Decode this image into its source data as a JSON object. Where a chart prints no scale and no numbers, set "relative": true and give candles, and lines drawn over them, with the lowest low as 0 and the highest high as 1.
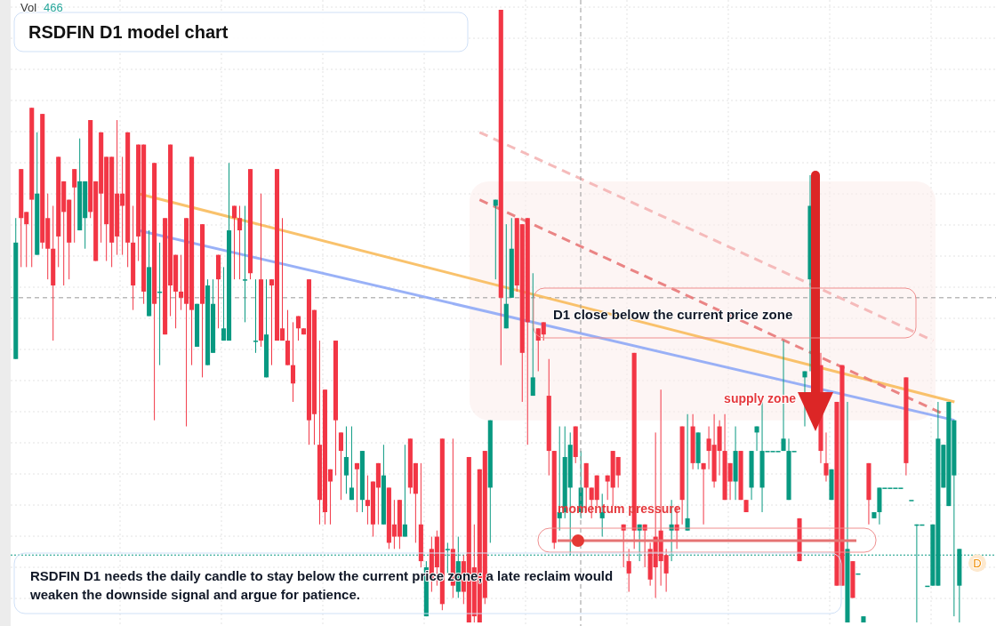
{
  "chart_data": {
    "type": "candlestick",
    "title": "RSDFIN D1 model chart",
    "relative": true,
    "categories": [
      null,
      null,
      null,
      null,
      null,
      null,
      null,
      null,
      null,
      null,
      null,
      null,
      null,
      null,
      null,
      null,
      null,
      null,
      null,
      null,
      null,
      null,
      null,
      null,
      null,
      null,
      null,
      null,
      null,
      null,
      null,
      null,
      null,
      null,
      null,
      null,
      null,
      null,
      null,
      null,
      null,
      null,
      null,
      null,
      null,
      null,
      null,
      null,
      null,
      null,
      null,
      null,
      null,
      null,
      null,
      null,
      null,
      null,
      null,
      null,
      null,
      null,
      null,
      null,
      null,
      null,
      null,
      null,
      null,
      null,
      null,
      null,
      null,
      null,
      null,
      null,
      null,
      null,
      null,
      null,
      null,
      null,
      null,
      null,
      null,
      null,
      null,
      null,
      null,
      null,
      null,
      null,
      null,
      null,
      null,
      null,
      null,
      null,
      null,
      null,
      null,
      null,
      null,
      null,
      null,
      null,
      null,
      null,
      null,
      null,
      null,
      null,
      null,
      null,
      null,
      null,
      null,
      null,
      null,
      null,
      null,
      null,
      null,
      null,
      null,
      null,
      null,
      null,
      null,
      null,
      null,
      null,
      null,
      null,
      null,
      null,
      null,
      null,
      null,
      null,
      null,
      null,
      null,
      null,
      null,
      null,
      null,
      null,
      null,
      null,
      null,
      null,
      null,
      null,
      null,
      null,
      null,
      null,
      null,
      null,
      null,
      null,
      null,
      null,
      null,
      null,
      null,
      null,
      null,
      null,
      null,
      null,
      null,
      null,
      null,
      null,
      null,
      null
    ],
    "ohlc": [
      [
        0.43,
        0.66,
        0.43,
        0.62
      ],
      [
        0.74,
        0.74,
        0.58,
        0.66
      ],
      [
        0.67,
        0.67,
        0.58,
        0.65
      ],
      [
        0.84,
        0.84,
        0.58,
        0.69
      ],
      [
        0.6,
        0.8,
        0.6,
        0.7
      ],
      [
        0.83,
        0.83,
        0.61,
        0.62
      ],
      [
        0.66,
        0.7,
        0.56,
        0.61
      ],
      [
        0.61,
        0.68,
        0.46,
        0.55
      ],
      [
        0.76,
        0.76,
        0.58,
        0.63
      ],
      [
        0.72,
        0.72,
        0.55,
        0.67
      ],
      [
        0.69,
        0.69,
        0.56,
        0.62
      ],
      [
        0.74,
        0.74,
        0.62,
        0.71
      ],
      [
        0.64,
        0.79,
        0.64,
        0.72
      ],
      [
        0.66,
        0.72,
        0.61,
        0.72
      ],
      [
        0.82,
        0.82,
        0.66,
        0.67
      ],
      [
        0.72,
        0.72,
        0.59,
        0.59
      ],
      [
        0.8,
        0.8,
        0.62,
        0.7
      ],
      [
        0.76,
        0.76,
        0.59,
        0.65
      ],
      [
        0.76,
        0.76,
        0.58,
        0.62
      ],
      [
        0.7,
        0.82,
        0.6,
        0.63
      ],
      [
        0.7,
        0.76,
        0.6,
        0.68
      ],
      [
        0.8,
        0.8,
        0.58,
        0.62
      ],
      [
        0.62,
        0.68,
        0.51,
        0.55
      ],
      [
        0.78,
        0.78,
        0.59,
        0.63
      ],
      [
        0.78,
        0.78,
        0.52,
        0.54
      ],
      [
        0.5,
        0.64,
        0.5,
        0.58
      ],
      [
        0.75,
        0.75,
        0.33,
        0.52
      ],
      [
        0.54,
        0.62,
        0.42,
        0.54
      ],
      [
        0.66,
        0.66,
        0.47,
        0.47
      ],
      [
        0.78,
        0.78,
        0.5,
        0.55
      ],
      [
        0.6,
        0.6,
        0.48,
        0.54
      ],
      [
        0.54,
        0.6,
        0.51,
        0.53
      ],
      [
        0.66,
        0.66,
        0.32,
        0.52
      ],
      [
        0.76,
        0.76,
        0.42,
        0.51
      ],
      [
        0.45,
        0.52,
        0.45,
        0.52
      ],
      [
        0.65,
        0.65,
        0.4,
        0.52
      ],
      [
        0.42,
        0.56,
        0.42,
        0.55
      ],
      [
        0.44,
        0.56,
        0.44,
        0.52
      ],
      [
        0.6,
        0.6,
        0.48,
        0.56
      ],
      [
        0.46,
        0.58,
        0.46,
        0.48
      ],
      [
        0.46,
        0.75,
        0.46,
        0.64
      ],
      [
        0.68,
        0.68,
        0.56,
        0.66
      ],
      [
        0.66,
        0.68,
        0.56,
        0.64
      ],
      [
        0.56,
        0.68,
        0.49,
        0.56
      ],
      [
        0.74,
        0.74,
        0.56,
        0.57
      ],
      [
        0.46,
        0.56,
        0.44,
        0.46
      ],
      [
        0.56,
        0.7,
        0.45,
        0.46
      ],
      [
        0.4,
        0.56,
        0.4,
        0.47
      ],
      [
        0.56,
        0.56,
        0.42,
        0.55
      ],
      [
        0.74,
        0.74,
        0.46,
        0.46
      ],
      [
        0.48,
        0.66,
        0.46,
        0.46
      ],
      [
        0.46,
        0.51,
        0.42,
        0.42
      ],
      [
        0.42,
        0.49,
        0.36,
        0.39
      ],
      [
        0.5,
        0.5,
        0.46,
        0.48
      ],
      [
        0.48,
        0.48,
        0.47,
        0.47
      ],
      [
        0.56,
        0.56,
        0.29,
        0.33
      ],
      [
        0.51,
        0.51,
        0.29,
        0.34
      ],
      [
        0.29,
        0.46,
        0.16,
        0.2
      ],
      [
        0.38,
        0.38,
        0.16,
        0.18
      ],
      [
        0.25,
        0.25,
        0.16,
        0.23
      ],
      [
        0.46,
        0.46,
        0.24,
        0.33
      ],
      [
        0.31,
        0.31,
        0.2,
        0.28
      ],
      [
        0.24,
        0.32,
        0.21,
        0.27
      ],
      [
        0.2,
        0.32,
        0.2,
        0.22
      ],
      [
        0.26,
        0.26,
        0.18,
        0.25
      ],
      [
        0.2,
        0.28,
        0.18,
        0.28
      ],
      [
        0.2,
        0.24,
        0.16,
        0.19
      ],
      [
        0.23,
        0.23,
        0.14,
        0.16
      ],
      [
        0.26,
        0.26,
        0.16,
        0.22
      ],
      [
        0.16,
        0.29,
        0.16,
        0.24
      ],
      [
        0.22,
        0.22,
        0.12,
        0.13
      ],
      [
        0.16,
        0.2,
        0.12,
        0.14
      ],
      [
        0.2,
        0.2,
        0.12,
        0.14
      ],
      [
        0.14,
        0.29,
        0.14,
        0.16
      ],
      [
        0.3,
        0.3,
        0.21,
        0.22
      ],
      [
        0.26,
        0.26,
        0.13,
        0.21
      ],
      [
        0.16,
        0.26,
        0.09,
        0.1
      ],
      [
        0.01,
        0.1,
        0.01,
        0.09
      ],
      [
        0.12,
        0.14,
        0.05,
        0.07
      ],
      [
        0.14,
        0.15,
        0.06,
        0.09
      ],
      [
        0.3,
        0.3,
        0.02,
        0.03
      ],
      [
        0.12,
        0.13,
        0.08,
        0.12
      ],
      [
        0.12,
        0.3,
        0.04,
        0.06
      ],
      [
        0.05,
        0.14,
        0.04,
        0.1
      ],
      [
        0.1,
        0.11,
        0.03,
        0.05
      ],
      [
        0.27,
        0.27,
        0.0,
        0.0
      ],
      [
        0.09,
        0.16,
        0.0,
        0.01
      ],
      [
        0.25,
        0.25,
        0.0,
        0.0
      ],
      [
        0.28,
        0.28,
        0.03,
        0.04
      ],
      [
        0.22,
        0.33,
        0.13,
        0.33
      ],
      [
        0.68,
        0.69,
        0.56,
        0.69
      ],
      [
        1.0,
        1.0,
        0.42,
        0.53
      ],
      [
        0.48,
        0.65,
        0.48,
        0.52
      ],
      [
        0.53,
        0.66,
        0.53,
        0.61
      ],
      [
        0.66,
        0.66,
        0.54,
        0.55
      ],
      [
        0.65,
        0.65,
        0.36,
        0.44
      ],
      [
        0.66,
        0.66,
        0.29,
        0.49
      ],
      [
        0.37,
        0.57,
        0.37,
        0.4
      ],
      [
        0.48,
        0.48,
        0.41,
        0.46
      ],
      [
        0.49,
        0.49,
        0.46,
        0.47
      ],
      [
        0.37,
        0.43,
        0.24,
        0.28
      ],
      [
        0.28,
        0.28,
        0.12,
        0.13
      ],
      [
        0.17,
        0.32,
        0.15,
        0.18
      ],
      [
        0.18,
        0.32,
        0.17,
        0.27
      ],
      [
        0.22,
        0.31,
        0.11,
        0.29
      ],
      [
        0.32,
        0.32,
        0.26,
        0.27
      ],
      [
        0.18,
        0.28,
        0.17,
        0.22
      ],
      [
        0.26,
        0.26,
        0.18,
        0.22
      ],
      [
        0.22,
        0.22,
        0.17,
        0.2
      ],
      [
        0.24,
        0.24,
        0.19,
        0.2
      ],
      [
        0.17,
        0.21,
        0.14,
        0.18
      ],
      [
        0.24,
        0.24,
        0.2,
        0.23
      ],
      [
        0.28,
        0.28,
        0.19,
        0.22
      ],
      [
        0.27,
        0.27,
        0.22,
        0.24
      ],
      [
        0.16,
        0.16,
        0.09,
        0.15
      ],
      [
        0.1,
        0.12,
        0.05,
        0.08
      ],
      [
        0.44,
        0.44,
        0.12,
        0.15
      ],
      [
        0.15,
        0.16,
        0.1,
        0.16
      ],
      [
        0.16,
        0.16,
        0.09,
        0.15
      ],
      [
        0.12,
        0.13,
        0.06,
        0.07
      ],
      [
        0.14,
        0.31,
        0.04,
        0.09
      ],
      [
        0.15,
        0.38,
        0.06,
        0.1
      ],
      [
        0.11,
        0.12,
        0.05,
        0.08
      ],
      [
        0.15,
        0.2,
        0.1,
        0.16
      ],
      [
        0.16,
        0.19,
        0.12,
        0.15
      ],
      [
        0.32,
        0.32,
        0.16,
        0.2
      ],
      [
        0.15,
        0.34,
        0.15,
        0.17
      ],
      [
        0.32,
        0.34,
        0.25,
        0.26
      ],
      [
        0.26,
        0.31,
        0.25,
        0.31
      ],
      [
        0.26,
        0.26,
        0.16,
        0.25
      ],
      [
        0.3,
        0.32,
        0.25,
        0.28
      ],
      [
        0.29,
        0.34,
        0.22,
        0.23
      ],
      [
        0.32,
        0.33,
        0.24,
        0.28
      ],
      [
        0.28,
        0.34,
        0.2,
        0.2
      ],
      [
        0.26,
        0.26,
        0.2,
        0.23
      ],
      [
        0.23,
        0.32,
        0.2,
        0.28
      ],
      [
        0.28,
        0.28,
        0.2,
        0.2
      ],
      [
        0.2,
        0.2,
        0.18,
        0.18
      ],
      [
        0.22,
        0.28,
        0.2,
        0.28
      ],
      [
        0.31,
        0.32,
        0.28,
        0.32
      ],
      [
        0.22,
        0.36,
        0.18,
        0.28
      ],
      [
        0.28,
        0.28,
        0.28,
        0.28
      ],
      [
        0.28,
        0.28,
        0.28,
        0.28
      ],
      [
        0.28,
        0.28,
        0.28,
        0.28
      ],
      [
        0.28,
        0.46,
        0.28,
        0.3
      ],
      [
        0.2,
        0.3,
        0.2,
        0.28
      ],
      [
        0.28,
        0.28,
        0.28,
        0.28
      ],
      [
        0.17,
        0.17,
        0.1,
        0.1
      ],
      [
        0.4,
        0.41,
        0.32,
        0.41
      ],
      [
        0.56,
        0.73,
        0.41,
        0.68
      ],
      null,
      [
        0.42,
        0.44,
        0.26,
        0.28
      ],
      [
        0.26,
        0.31,
        0.23,
        0.24
      ],
      [
        0.2,
        0.25,
        0.2,
        0.25
      ],
      [
        0.36,
        0.36,
        0.06,
        0.06
      ],
      [
        0.42,
        0.42,
        0.06,
        0.06
      ],
      [
        0.0,
        0.36,
        0.0,
        0.12
      ],
      [
        0.1,
        0.1,
        0.04,
        0.04
      ],
      [
        0.08,
        0.08,
        0.08,
        0.08
      ],
      [
        0.0,
        0.01,
        0.0,
        0.01
      ],
      [
        0.26,
        0.26,
        0.16,
        0.2
      ],
      [
        0.17,
        0.18,
        0.17,
        0.18
      ],
      [
        0.18,
        0.22,
        0.16,
        0.22
      ],
      [
        0.22,
        0.22,
        0.22,
        0.22
      ],
      [
        0.22,
        0.22,
        0.22,
        0.22
      ],
      [
        0.22,
        0.22,
        0.22,
        0.22
      ],
      [
        0.22,
        0.22,
        0.22,
        0.22
      ],
      [
        0.4,
        0.4,
        0.24,
        0.26
      ],
      [
        0.2,
        0.2,
        0.2,
        0.2
      ],
      [
        0.16,
        0.16,
        0.0,
        0.16
      ],
      [
        0.16,
        0.16,
        0.16,
        0.16
      ],
      [
        0.06,
        0.06,
        0.06,
        0.06
      ],
      [
        0.06,
        0.16,
        0.06,
        0.16
      ],
      [
        0.06,
        0.36,
        0.06,
        0.3
      ],
      [
        0.22,
        0.29,
        0.22,
        0.29
      ],
      [
        0.19,
        0.36,
        0.19,
        0.36
      ],
      [
        0.24,
        0.33,
        0.01,
        0.33
      ],
      [
        0.06,
        0.12,
        0.0,
        0.12
      ]
    ],
    "series": [
      {
        "type": "line",
        "color": "#f8bb5c",
        "values": [
          null,
          null,
          null,
          null,
          null,
          null,
          null,
          null,
          null,
          null,
          null,
          null,
          null,
          null,
          null,
          null,
          null,
          null,
          null,
          null,
          null,
          null,
          null,
          0.7,
          null,
          null,
          null,
          null,
          null,
          null,
          null,
          null,
          null,
          null,
          null,
          null,
          null,
          null,
          null,
          null,
          null,
          null,
          null,
          null,
          null,
          null,
          null,
          null,
          null,
          null,
          null,
          null,
          null,
          null,
          null,
          null,
          null,
          null,
          null,
          null,
          null,
          null,
          null,
          null,
          null,
          null,
          null,
          null,
          null,
          null,
          null,
          null,
          null,
          null,
          null,
          null,
          null,
          null,
          null,
          null,
          null,
          null,
          null,
          null,
          null,
          null,
          null,
          null,
          null,
          null,
          null,
          null,
          null,
          null,
          null,
          null,
          null,
          null,
          null,
          null,
          null,
          null,
          null,
          null,
          null,
          null,
          null,
          null,
          null,
          null,
          null,
          null,
          null,
          null,
          null,
          null,
          null,
          null,
          null,
          null,
          null,
          null,
          null,
          null,
          null,
          null,
          null,
          null,
          null,
          null,
          null,
          null,
          null,
          null,
          null,
          null,
          null,
          null,
          null,
          null,
          null,
          null,
          null,
          null,
          null,
          null,
          null,
          null,
          null,
          null,
          null,
          null,
          null,
          null,
          null,
          null,
          null,
          null,
          null,
          null,
          null,
          null,
          null,
          null,
          null,
          null,
          null,
          null,
          null,
          null,
          null,
          null,
          null,
          null,
          null,
          null,
          0.36,
          null
        ]
      },
      {
        "type": "line",
        "color": "#8ea8f6",
        "values": [
          null,
          null,
          null,
          null,
          null,
          null,
          null,
          null,
          null,
          null,
          null,
          null,
          null,
          null,
          null,
          null,
          null,
          null,
          null,
          null,
          null,
          null,
          null,
          0.64,
          null,
          null,
          null,
          null,
          null,
          null,
          null,
          null,
          null,
          null,
          null,
          null,
          null,
          null,
          null,
          null,
          null,
          null,
          null,
          null,
          null,
          null,
          null,
          null,
          null,
          null,
          null,
          null,
          null,
          null,
          null,
          null,
          null,
          null,
          null,
          null,
          null,
          null,
          null,
          null,
          null,
          null,
          null,
          null,
          null,
          null,
          null,
          null,
          null,
          null,
          null,
          null,
          null,
          null,
          null,
          null,
          null,
          null,
          null,
          null,
          null,
          null,
          null,
          null,
          null,
          null,
          null,
          null,
          null,
          null,
          null,
          null,
          null,
          null,
          null,
          null,
          null,
          null,
          null,
          null,
          null,
          null,
          null,
          null,
          null,
          null,
          null,
          null,
          null,
          null,
          null,
          null,
          null,
          null,
          null,
          null,
          null,
          null,
          null,
          null,
          null,
          null,
          null,
          null,
          null,
          null,
          null,
          null,
          null,
          null,
          null,
          null,
          null,
          null,
          null,
          null,
          null,
          null,
          null,
          null,
          null,
          null,
          null,
          null,
          null,
          null,
          null,
          null,
          null,
          null,
          null,
          null,
          null,
          null,
          null,
          null,
          null,
          null,
          null,
          null,
          null,
          null,
          null,
          null,
          null,
          null,
          null,
          null,
          null,
          null,
          null,
          null,
          0.33,
          null
        ]
      },
      {
        "type": "line",
        "color": "#e87878",
        "line_style": "dashed",
        "values": [
          null,
          null,
          null,
          null,
          null,
          null,
          null,
          null,
          null,
          null,
          null,
          null,
          null,
          null,
          null,
          null,
          null,
          null,
          null,
          null,
          null,
          null,
          null,
          null,
          null,
          null,
          null,
          null,
          null,
          null,
          null,
          null,
          null,
          null,
          null,
          null,
          null,
          null,
          null,
          null,
          null,
          null,
          null,
          null,
          null,
          null,
          null,
          null,
          null,
          null,
          null,
          null,
          null,
          null,
          null,
          null,
          null,
          null,
          null,
          null,
          null,
          null,
          null,
          null,
          null,
          null,
          null,
          null,
          null,
          null,
          null,
          null,
          null,
          null,
          null,
          null,
          null,
          null,
          null,
          null,
          null,
          null,
          null,
          null,
          null,
          null,
          null,
          0.69,
          null,
          null,
          null,
          null,
          null,
          null,
          null,
          null,
          null,
          null,
          null,
          null,
          null,
          null,
          null,
          null,
          null,
          null,
          null,
          null,
          null,
          null,
          null,
          null,
          null,
          null,
          null,
          null,
          null,
          null,
          null,
          null,
          null,
          null,
          null,
          null,
          null,
          null,
          null,
          null,
          null,
          null,
          null,
          null,
          null,
          null,
          null,
          null,
          null,
          null,
          null,
          null,
          null,
          null,
          null,
          null,
          null,
          null,
          null,
          null,
          null,
          null,
          null,
          null,
          null,
          null,
          null,
          null,
          null,
          null,
          null,
          null,
          null,
          null,
          null,
          null,
          null,
          null,
          null,
          null,
          null,
          null,
          null,
          null,
          null,
          null,
          0.34,
          null,
          null,
          null
        ]
      },
      {
        "type": "line",
        "color": "#f4b4b4",
        "line_style": "dashed",
        "values": [
          null,
          null,
          null,
          null,
          null,
          null,
          null,
          null,
          null,
          null,
          null,
          null,
          null,
          null,
          null,
          null,
          null,
          null,
          null,
          null,
          null,
          null,
          null,
          null,
          null,
          null,
          null,
          null,
          null,
          null,
          null,
          null,
          null,
          null,
          null,
          null,
          null,
          null,
          null,
          null,
          null,
          null,
          null,
          null,
          null,
          null,
          null,
          null,
          null,
          null,
          null,
          null,
          null,
          null,
          null,
          null,
          null,
          null,
          null,
          null,
          null,
          null,
          null,
          null,
          null,
          null,
          null,
          null,
          null,
          null,
          null,
          null,
          null,
          null,
          null,
          null,
          null,
          null,
          null,
          null,
          null,
          null,
          null,
          null,
          null,
          null,
          null,
          0.8,
          null,
          null,
          null,
          null,
          null,
          null,
          null,
          null,
          null,
          null,
          null,
          null,
          null,
          null,
          null,
          null,
          null,
          null,
          null,
          null,
          null,
          null,
          null,
          null,
          null,
          null,
          null,
          null,
          null,
          null,
          null,
          null,
          null,
          null,
          null,
          null,
          null,
          null,
          null,
          null,
          null,
          null,
          null,
          null,
          null,
          null,
          null,
          null,
          null,
          null,
          null,
          null,
          null,
          null,
          null,
          null,
          null,
          null,
          null,
          null,
          null,
          null,
          null,
          null,
          null,
          null,
          null,
          null,
          null,
          null,
          null,
          null,
          null,
          null,
          null,
          null,
          null,
          null,
          null,
          null,
          null,
          null,
          null,
          null,
          0.46,
          null,
          null,
          null,
          null,
          null
        ]
      }
    ],
    "ref_lines": [
      {
        "axis": "y",
        "value": 0.53,
        "color": "#999999",
        "line_style": "dashed"
      },
      {
        "axis": "y",
        "value": 0.11,
        "label": "D",
        "color": "#089981",
        "line_style": "dotted"
      }
    ],
    "bands": [
      {
        "axis": "y",
        "from": 0.33,
        "to": 0.72,
        "label": "supply zone",
        "color": "#fbefec"
      }
    ],
    "annotations": [
      "Vol",
      "466",
      "RSDFIN D1 needs the daily candle to stay below the current price zone; a late reclaim would weaken the downside signal and argue for patience.",
      "D1 close below the current price zone",
      "momentum pressure"
    ]
  }
}
